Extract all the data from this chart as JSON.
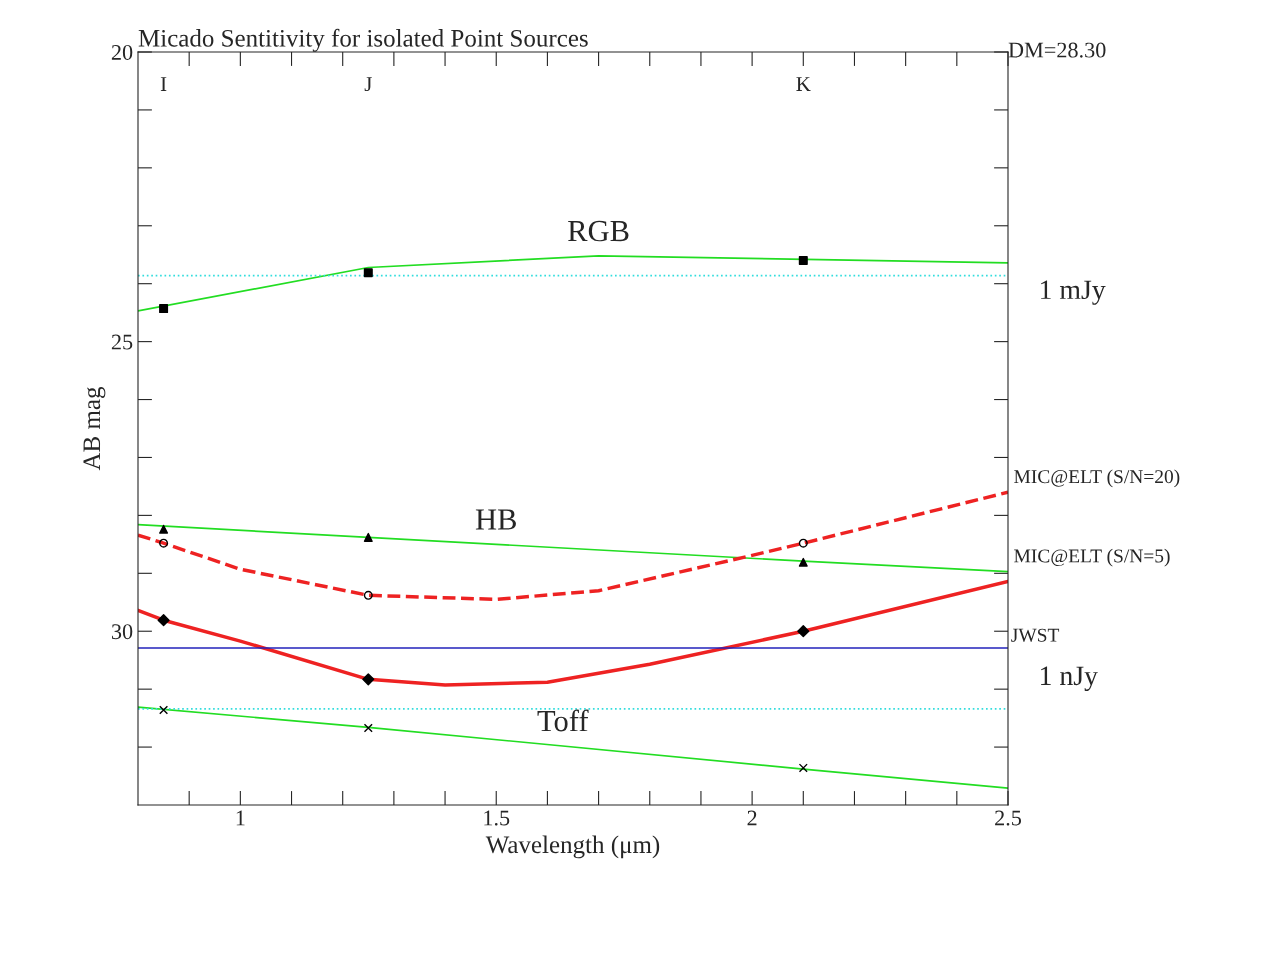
{
  "chart_data": {
    "type": "line",
    "title": "Micado Sentitivity for isolated Point Sources",
    "xlabel": "Wavelength (μm)",
    "ylabel": "AB mag",
    "xlim": [
      0.8,
      2.5
    ],
    "ylim": [
      33,
      20
    ],
    "xticks": [
      {
        "value": 0.9,
        "label": null
      },
      1,
      {
        "value": 1.1,
        "label": null
      },
      {
        "value": 1.2,
        "label": null
      },
      {
        "value": 1.3,
        "label": null
      },
      {
        "value": 1.4,
        "label": null
      },
      1.5,
      {
        "value": 1.6,
        "label": null
      },
      {
        "value": 1.7,
        "label": null
      },
      {
        "value": 1.8,
        "label": null
      },
      {
        "value": 1.9,
        "label": null
      },
      2,
      {
        "value": 2.1,
        "label": null
      },
      {
        "value": 2.2,
        "label": null
      },
      {
        "value": 2.3,
        "label": null
      },
      {
        "value": 2.4,
        "label": null
      },
      2.5
    ],
    "yticks": [
      20,
      {
        "value": 21,
        "label": null
      },
      {
        "value": 22,
        "label": null
      },
      {
        "value": 23,
        "label": null
      },
      {
        "value": 24,
        "label": null
      },
      25,
      {
        "value": 26,
        "label": null
      },
      {
        "value": 27,
        "label": null
      },
      {
        "value": 28,
        "label": null
      },
      {
        "value": 29,
        "label": null
      },
      30,
      {
        "value": 31,
        "label": null
      },
      {
        "value": 32,
        "label": null
      }
    ],
    "grid": false,
    "legend": false,
    "series": [
      {
        "color": "#22dd22",
        "line_style": "solid",
        "marker": "none",
        "x": [
          0.8,
          1.25,
          1.7,
          2.5
        ],
        "values": [
          24.47,
          23.72,
          23.52,
          23.64
        ]
      },
      {
        "type": "scatter",
        "color": "#000000",
        "marker": "square",
        "x": [
          0.85,
          1.25,
          2.1
        ],
        "values": [
          24.43,
          23.81,
          23.6
        ]
      },
      {
        "color": "#22dd22",
        "line_style": "solid",
        "marker": "none",
        "x": [
          0.8,
          1.25,
          2.1,
          2.5
        ],
        "values": [
          28.16,
          28.38,
          28.79,
          28.97
        ]
      },
      {
        "type": "scatter",
        "color": "#000000",
        "marker": "triangle",
        "x": [
          0.85,
          1.25,
          2.1
        ],
        "values": [
          28.24,
          28.38,
          28.81
        ]
      },
      {
        "color": "#ee2222",
        "line_style": "dashed",
        "marker": "none",
        "x": [
          0.8,
          0.85,
          1.0,
          1.25,
          1.5,
          1.7,
          2.0,
          2.1,
          2.5
        ],
        "values": [
          28.34,
          28.48,
          28.93,
          29.38,
          29.45,
          29.3,
          28.69,
          28.48,
          27.6
        ]
      },
      {
        "type": "scatter",
        "color": "#000000",
        "marker": "circle_open",
        "x": [
          0.85,
          1.25,
          2.1
        ],
        "values": [
          28.48,
          29.38,
          28.48
        ]
      },
      {
        "color": "#ee2222",
        "line_style": "solid",
        "marker": "none",
        "x": [
          0.8,
          0.85,
          1.0,
          1.25,
          1.4,
          1.6,
          1.8,
          2.1,
          2.5
        ],
        "values": [
          29.64,
          29.81,
          30.17,
          30.83,
          30.93,
          30.88,
          30.57,
          30.0,
          29.14
        ]
      },
      {
        "type": "scatter",
        "color": "#000000",
        "marker": "diamond",
        "x": [
          0.85,
          1.25,
          2.1
        ],
        "values": [
          29.81,
          30.83,
          30.0
        ]
      },
      {
        "color": "#22dd22",
        "line_style": "solid",
        "marker": "none",
        "x": [
          0.8,
          1.25,
          2.1,
          2.5
        ],
        "values": [
          31.31,
          31.66,
          32.38,
          32.71
        ]
      },
      {
        "type": "scatter",
        "color": "#000000",
        "marker": "cross",
        "x": [
          0.85,
          1.25,
          2.1
        ],
        "values": [
          31.36,
          31.67,
          32.36
        ]
      }
    ],
    "ref_lines": [
      {
        "axis": "y",
        "value": 23.86,
        "color": "#33dddd",
        "line_style": "dotted",
        "label": "1 mJy"
      },
      {
        "axis": "y",
        "value": 31.34,
        "color": "#33dddd",
        "line_style": "dotted",
        "label": "1 nJy"
      },
      {
        "axis": "y",
        "value": 30.29,
        "color": "#2222bb",
        "line_style": "solid",
        "label": "JWST"
      }
    ],
    "annotations": [
      {
        "text": "RGB",
        "x": 1.7,
        "y": 23.52
      },
      {
        "text": "HB",
        "x": 1.5,
        "y": 28.5
      },
      {
        "text": "Toff",
        "x": 1.63,
        "y": 31.98
      },
      {
        "text": "MIC@ELT (S/N=20)",
        "x": 2.5,
        "y": 27.6
      },
      {
        "text": "MIC@ELT (S/N=5)",
        "x": 2.5,
        "y": 28.97
      },
      "I",
      "J",
      "K",
      "DM=28.30"
    ]
  }
}
